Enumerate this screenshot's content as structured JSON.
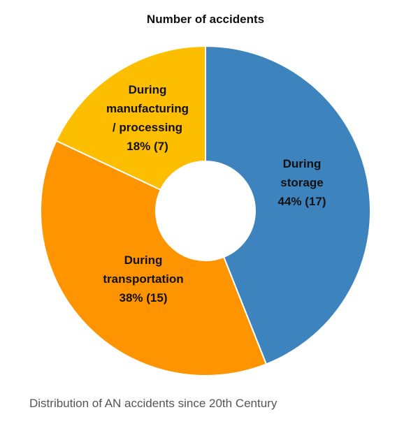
{
  "chart_data": {
    "type": "pie",
    "title": "Number of accidents",
    "donut": true,
    "start_angle_deg": 0,
    "direction": "clockwise",
    "slices": [
      {
        "label_lines": [
          "During",
          "storage"
        ],
        "value_label": "44%  (17)",
        "percent": 44,
        "value": 17,
        "color": "#3d84bf"
      },
      {
        "label_lines": [
          "During",
          "transportation"
        ],
        "value_label": "38%  (15)",
        "percent": 38,
        "value": 15,
        "color": "#fd9400"
      },
      {
        "label_lines": [
          "During",
          "manufacturing",
          "/ processing"
        ],
        "value_label": "18%  (7)",
        "percent": 18,
        "value": 7,
        "color": "#fdbe00"
      }
    ]
  },
  "caption": "Distribution of AN accidents since 20th Century"
}
